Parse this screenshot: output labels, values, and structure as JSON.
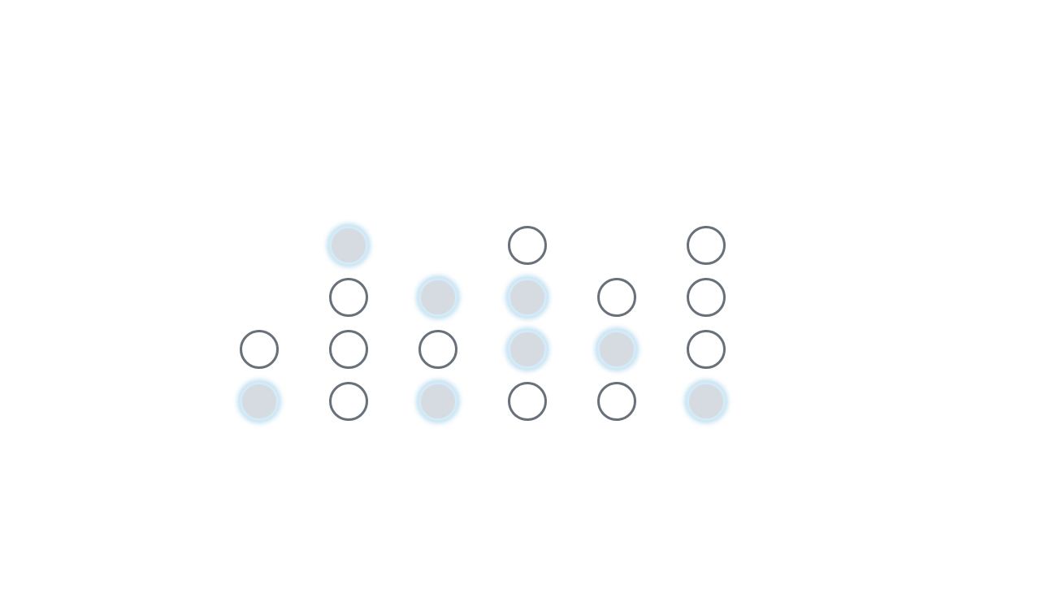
{
  "board": {
    "colors": {
      "ring": "#68717a",
      "lit_fill": "#d5dbe0",
      "lit_ring": "#d4ebf7",
      "glow": "#add6ec",
      "background": "#ffffff"
    },
    "columns": [
      {
        "pegs": [
          true,
          false
        ]
      },
      {
        "pegs": [
          false,
          false,
          false,
          true
        ]
      },
      {
        "pegs": [
          true,
          false,
          true
        ]
      },
      {
        "pegs": [
          false,
          true,
          true,
          false
        ]
      },
      {
        "pegs": [
          false,
          true,
          false
        ]
      },
      {
        "pegs": [
          true,
          false,
          false,
          false
        ]
      }
    ]
  }
}
